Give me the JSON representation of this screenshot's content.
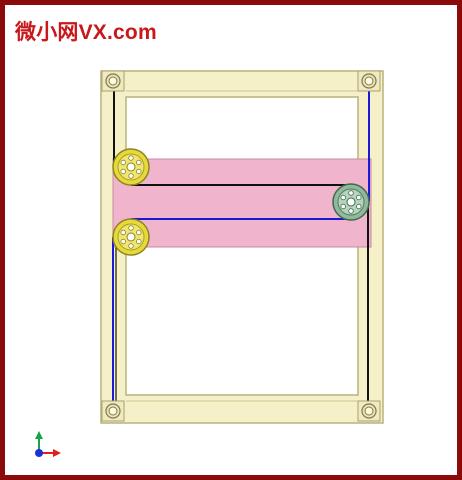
{
  "watermark": {
    "text": "微小网VX.com",
    "color": "#c8181c"
  },
  "colors": {
    "border": "#8b0a0a",
    "frame_fill": "#f5f0c8",
    "frame_stroke": "#b8b27a",
    "pink_panel": "#f0b4cc",
    "pink_stroke": "#c98aa3",
    "cable_black": "#111111",
    "cable_blue": "#1a1ad6",
    "yellow_pulley": "#e6d93a",
    "green_pulley": "#8fb89c",
    "axis_x": "#e11d1d",
    "axis_y": "#16a34a",
    "axis_origin": "#1d2fd6"
  },
  "icons": {
    "triad": "axis-triad-icon",
    "pulley": "pulley-wheel-icon",
    "corner_bolt": "corner-bolt-icon"
  }
}
